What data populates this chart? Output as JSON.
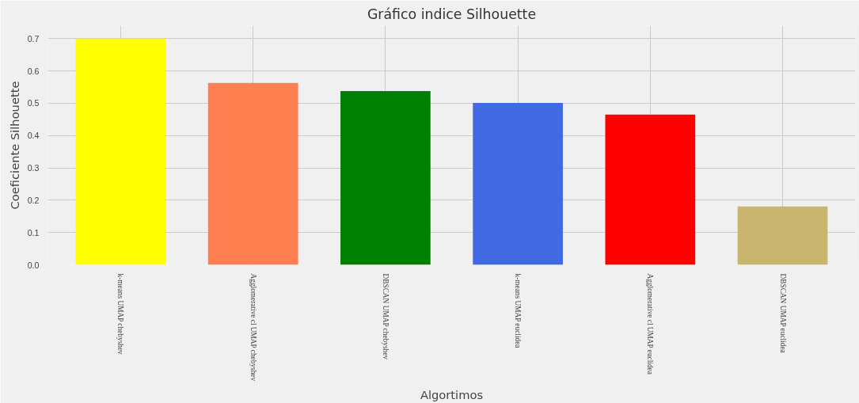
{
  "chart_data": {
    "type": "bar",
    "title": "Gráfico indice Silhouette",
    "xlabel": "Algortimos",
    "ylabel": "Coeficiente Silhouette",
    "categories": [
      "k-means UMAP chebyshev",
      "Agglomerative cl UMAP chebyshev",
      "DBSCAN UMAP chebyshev",
      "k-means UMAP euclidea",
      "Agglomerative cl UMAP euclidea",
      "DBSCAN UMAP euclidea"
    ],
    "values": [
      0.7,
      0.563,
      0.538,
      0.501,
      0.465,
      0.181
    ],
    "colors": [
      "#ffff00",
      "#ff7f50",
      "#008000",
      "#4169e1",
      "#ff0000",
      "#c8b56f"
    ],
    "ylim": [
      0,
      0.74
    ],
    "yticks": [
      {
        "value": 0,
        "label": "0.0"
      },
      0.1,
      0.2,
      0.3,
      0.4,
      0.5,
      0.6,
      0.7
    ],
    "grid": true
  }
}
